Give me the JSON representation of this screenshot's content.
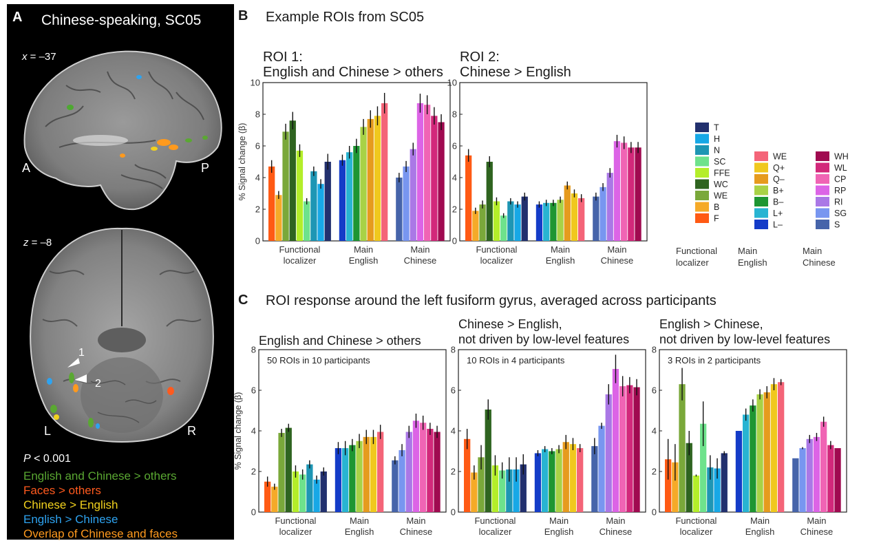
{
  "panel_a": {
    "letter": "A",
    "title": "Chinese-speaking, SC05",
    "sagittal_label_italic": "x",
    "sagittal_label_rest": " = –37",
    "axial_label_italic": "z",
    "axial_label_rest": " = –8",
    "orientation": {
      "anterior": "A",
      "posterior": "P",
      "left": "L",
      "right": "R"
    },
    "arrow_labels": [
      "1",
      "2"
    ],
    "p_label_italic": "P",
    "p_label_rest": " < 0.001",
    "legend": [
      {
        "label": "English and Chinese > others",
        "color": "#5aa832"
      },
      {
        "label": "Faces > others",
        "color": "#ff5a1e"
      },
      {
        "label": "Chinese > English",
        "color": "#f2d21e"
      },
      {
        "label": "English > Chinese",
        "color": "#2ea3f0"
      },
      {
        "label": "Overlap of Chinese and faces",
        "color": "#ff9a1e"
      }
    ]
  },
  "panel_b": {
    "letter": "B",
    "title": "Example ROIs from SC05",
    "roi1_line1": "ROI 1:",
    "roi1_line2": "English and Chinese > others",
    "roi2_line1": "ROI 2:",
    "roi2_line2": "Chinese > English"
  },
  "panel_c": {
    "letter": "C",
    "title": "ROI response around the left fusiform gyrus, averaged across participants",
    "g1_line1": "English and Chinese > others",
    "g2_line1": "Chinese > English,",
    "g2_line2": "not driven by low-level features",
    "g3_line1": "English > Chinese,",
    "g3_line2": "not driven by low-level features"
  },
  "legend_b": {
    "groups": [
      "Functional\nlocalizer",
      "Main\nEnglish",
      "Main\nChinese"
    ],
    "localizer": [
      {
        "label": "T",
        "color": "#22306e"
      },
      {
        "label": "H",
        "color": "#17a8e6"
      },
      {
        "label": "N",
        "color": "#1e96b4"
      },
      {
        "label": "SC",
        "color": "#6ee28c"
      },
      {
        "label": "FFE",
        "color": "#b4ee2a"
      },
      {
        "label": "WC",
        "color": "#2f6420"
      },
      {
        "label": "WE",
        "color": "#7aa83a"
      },
      {
        "label": "B",
        "color": "#f5aa28"
      },
      {
        "label": "F",
        "color": "#ff5a14"
      }
    ],
    "english": [
      {
        "label": "WE",
        "color": "#f46478"
      },
      {
        "label": "Q+",
        "color": "#f0c81e"
      },
      {
        "label": "Q–",
        "color": "#e69b1e"
      },
      {
        "label": "B+",
        "color": "#a8d246"
      },
      {
        "label": "B–",
        "color": "#1e9632"
      },
      {
        "label": "L+",
        "color": "#28b4d2"
      },
      {
        "label": "L–",
        "color": "#143cc8"
      }
    ],
    "chinese": [
      {
        "label": "WH",
        "color": "#a00a50"
      },
      {
        "label": "WL",
        "color": "#d2287a"
      },
      {
        "label": "CP",
        "color": "#f064b4"
      },
      {
        "label": "RP",
        "color": "#dc64e6"
      },
      {
        "label": "RI",
        "color": "#aa78e6"
      },
      {
        "label": "SG",
        "color": "#7896f0"
      },
      {
        "label": "S",
        "color": "#4664aa"
      }
    ]
  },
  "chart_data": [
    {
      "type": "bar",
      "panel": "B",
      "title": "ROI 1: English and Chinese > others",
      "ylabel": "% Signal change (β)",
      "ylim": [
        0,
        10
      ],
      "yticks": [
        0,
        2,
        4,
        6,
        8,
        10
      ],
      "groups": [
        {
          "label": "Functional localizer",
          "categories": [
            "F",
            "B",
            "WE",
            "WC",
            "FFE",
            "SC",
            "N",
            "H",
            "T"
          ],
          "values": [
            4.7,
            2.9,
            6.9,
            7.6,
            5.7,
            2.5,
            4.4,
            3.6,
            5.0
          ],
          "errors": [
            0.4,
            0.25,
            0.5,
            0.55,
            0.4,
            0.2,
            0.3,
            0.3,
            0.5
          ]
        },
        {
          "label": "Main English",
          "categories": [
            "L–",
            "L+",
            "B–",
            "B+",
            "Q–",
            "Q+",
            "WE"
          ],
          "values": [
            5.1,
            5.6,
            6.0,
            7.2,
            7.7,
            7.9,
            8.7
          ],
          "errors": [
            0.35,
            0.4,
            0.45,
            0.5,
            0.55,
            0.6,
            0.65
          ]
        },
        {
          "label": "Main Chinese",
          "categories": [
            "S",
            "SG",
            "RI",
            "RP",
            "CP",
            "WL",
            "WH"
          ],
          "values": [
            4.0,
            4.7,
            5.8,
            8.7,
            8.6,
            7.9,
            7.5
          ],
          "errors": [
            0.3,
            0.35,
            0.4,
            0.6,
            0.6,
            0.55,
            0.5
          ]
        }
      ]
    },
    {
      "type": "bar",
      "panel": "B",
      "title": "ROI 2: Chinese > English",
      "ylim": [
        0,
        10
      ],
      "yticks": [
        0,
        2,
        4,
        6,
        8,
        10
      ],
      "groups": [
        {
          "label": "Functional localizer",
          "categories": [
            "F",
            "B",
            "WE",
            "WC",
            "FFE",
            "SC",
            "N",
            "H",
            "T"
          ],
          "values": [
            5.4,
            1.9,
            2.3,
            5.0,
            2.5,
            1.6,
            2.5,
            2.3,
            2.8
          ],
          "errors": [
            0.4,
            0.2,
            0.25,
            0.35,
            0.25,
            0.15,
            0.2,
            0.2,
            0.25
          ]
        },
        {
          "label": "Main English",
          "categories": [
            "L–",
            "L+",
            "B–",
            "B+",
            "Q–",
            "Q+",
            "WE"
          ],
          "values": [
            2.3,
            2.4,
            2.4,
            2.6,
            3.5,
            3.0,
            2.7
          ],
          "errors": [
            0.2,
            0.2,
            0.2,
            0.2,
            0.25,
            0.25,
            0.25
          ]
        },
        {
          "label": "Main Chinese",
          "categories": [
            "S",
            "SG",
            "RI",
            "RP",
            "CP",
            "WL",
            "WH"
          ],
          "values": [
            2.8,
            3.4,
            4.3,
            6.3,
            6.2,
            5.9,
            5.9
          ],
          "errors": [
            0.25,
            0.25,
            0.3,
            0.4,
            0.4,
            0.35,
            0.35
          ]
        }
      ]
    },
    {
      "type": "bar",
      "panel": "C",
      "title": "English and Chinese > others",
      "annotation": "50 ROIs in 10 participants",
      "ylabel": "% Signal change (β)",
      "ylim": [
        0,
        8
      ],
      "yticks": [
        0,
        2,
        4,
        6,
        8
      ],
      "groups": [
        {
          "label": "Functional localizer",
          "categories": [
            "F",
            "B",
            "WE",
            "WC",
            "FFE",
            "SC",
            "N",
            "H",
            "T"
          ],
          "values": [
            1.5,
            1.25,
            3.9,
            4.15,
            2.0,
            1.85,
            2.35,
            1.6,
            2.0
          ],
          "errors": [
            0.25,
            0.15,
            0.2,
            0.2,
            0.3,
            0.25,
            0.2,
            0.2,
            0.2
          ]
        },
        {
          "label": "Main English",
          "categories": [
            "L–",
            "L+",
            "B–",
            "B+",
            "Q–",
            "Q+",
            "WE"
          ],
          "values": [
            3.15,
            3.15,
            3.3,
            3.5,
            3.7,
            3.7,
            3.95
          ],
          "errors": [
            0.3,
            0.35,
            0.3,
            0.35,
            0.35,
            0.35,
            0.35
          ]
        },
        {
          "label": "Main Chinese",
          "categories": [
            "S",
            "SG",
            "RI",
            "RP",
            "CP",
            "WL",
            "WH"
          ],
          "values": [
            2.55,
            3.05,
            3.95,
            4.5,
            4.4,
            4.1,
            3.95
          ],
          "errors": [
            0.2,
            0.3,
            0.3,
            0.35,
            0.35,
            0.3,
            0.3
          ]
        }
      ]
    },
    {
      "type": "bar",
      "panel": "C",
      "title": "Chinese > English, not driven by low-level features",
      "annotation": "10 ROIs in 4 participants",
      "ylim": [
        0,
        8
      ],
      "yticks": [
        0,
        2,
        4,
        6,
        8
      ],
      "groups": [
        {
          "label": "Functional localizer",
          "categories": [
            "F",
            "B",
            "WE",
            "WC",
            "FFE",
            "SC",
            "N",
            "H",
            "T"
          ],
          "values": [
            3.6,
            1.95,
            2.7,
            5.05,
            2.3,
            2.05,
            2.1,
            2.1,
            2.35
          ],
          "errors": [
            0.5,
            0.35,
            0.6,
            0.5,
            0.5,
            0.4,
            0.6,
            0.6,
            0.5
          ]
        },
        {
          "label": "Main English",
          "categories": [
            "L–",
            "L+",
            "B–",
            "B+",
            "Q–",
            "Q+",
            "WE"
          ],
          "values": [
            2.9,
            3.1,
            3.0,
            3.1,
            3.45,
            3.35,
            3.15
          ],
          "errors": [
            0.15,
            0.15,
            0.15,
            0.2,
            0.35,
            0.3,
            0.2
          ]
        },
        {
          "label": "Main Chinese",
          "categories": [
            "S",
            "SG",
            "RI",
            "RP",
            "CP",
            "WL",
            "WH"
          ],
          "values": [
            3.25,
            4.25,
            5.8,
            7.05,
            6.2,
            6.25,
            6.15
          ],
          "errors": [
            0.4,
            0.15,
            0.5,
            0.7,
            0.5,
            0.4,
            0.4
          ]
        }
      ]
    },
    {
      "type": "bar",
      "panel": "C",
      "title": "English > Chinese, not driven by low-level features",
      "annotation": "3 ROIs in 2 participants",
      "ylim": [
        0,
        8
      ],
      "yticks": [
        0,
        2,
        4,
        6,
        8
      ],
      "groups": [
        {
          "label": "Functional localizer",
          "categories": [
            "F",
            "B",
            "WE",
            "WC",
            "FFE",
            "SC",
            "N",
            "H",
            "T"
          ],
          "values": [
            2.6,
            2.45,
            6.3,
            3.4,
            1.8,
            4.35,
            2.2,
            2.15,
            2.9
          ],
          "errors": [
            1.0,
            0.9,
            0.8,
            0.6,
            0.05,
            1.1,
            0.6,
            0.5,
            0.1
          ]
        },
        {
          "label": "Main English",
          "categories": [
            "L–",
            "L+",
            "B–",
            "B+",
            "Q–",
            "Q+",
            "WE"
          ],
          "values": [
            4.0,
            4.8,
            5.25,
            5.8,
            5.9,
            6.3,
            6.4
          ],
          "errors": [
            0.0,
            0.3,
            0.3,
            0.25,
            0.3,
            0.3,
            0.15
          ]
        },
        {
          "label": "Main Chinese",
          "categories": [
            "S",
            "SG",
            "RI",
            "RP",
            "CP",
            "WL",
            "WH"
          ],
          "values": [
            2.65,
            3.15,
            3.6,
            3.7,
            4.45,
            3.3,
            3.15
          ],
          "errors": [
            0.0,
            0.05,
            0.2,
            0.2,
            0.25,
            0.2,
            0.0
          ]
        }
      ]
    }
  ]
}
